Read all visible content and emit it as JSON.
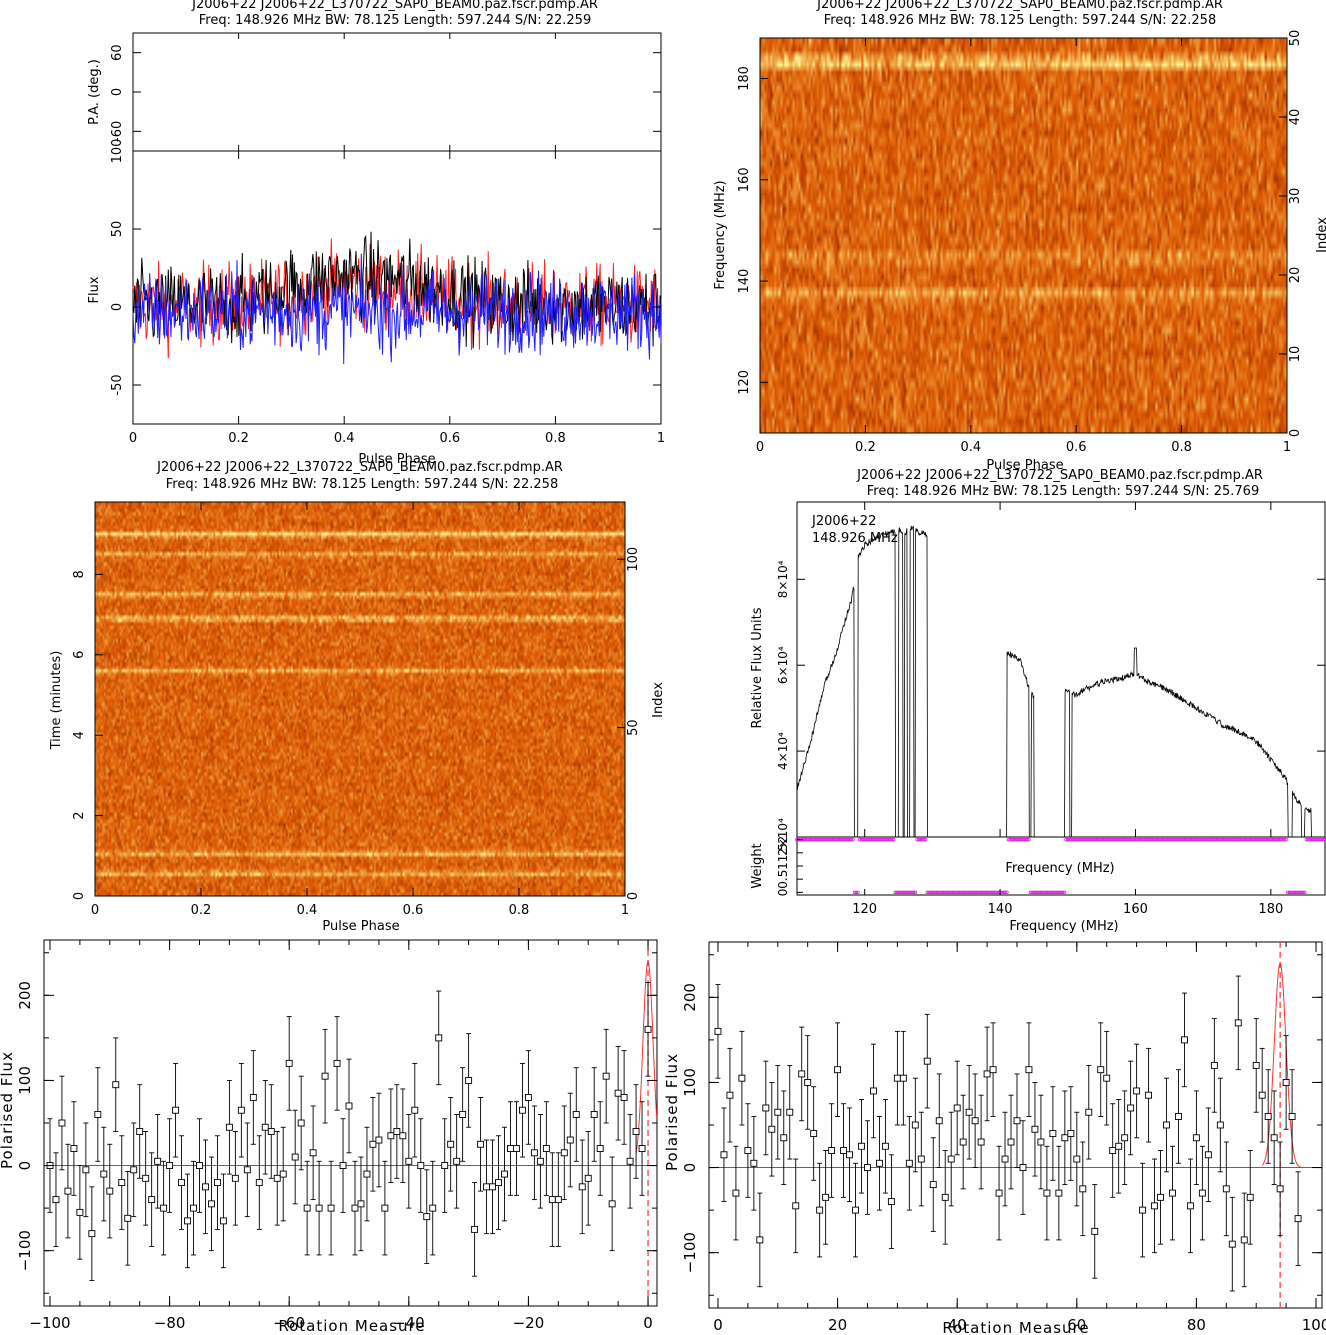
{
  "chart_data": [
    {
      "id": "profile",
      "type": "line",
      "title": "J2006+22  J2006+22_L370722_SAP0_BEAM0.paz.fscr.pdmp.AR",
      "subtitle": "Freq: 148.926 MHz BW: 78.125 Length: 597.244 S/N: 22.259",
      "xlabel": "Pulse Phase",
      "ylabel": "Flux",
      "ylabel_top": "P.A. (deg.)",
      "xlim": [
        0,
        1
      ],
      "ylim": [
        -75,
        100
      ],
      "pa_ylim": [
        -90,
        90
      ],
      "xticks": [
        "0",
        "0.2",
        "0.4",
        "0.6",
        "0.8",
        "1"
      ],
      "yticks": [
        "-50",
        "0",
        "50",
        "100"
      ],
      "pa_yticks": [
        "-60",
        "0",
        "60"
      ],
      "series": [
        {
          "color": "#000000",
          "envelope": {
            "phase": [
              0,
              0.2,
              0.3,
              0.4,
              0.5,
              0.6,
              0.7,
              1.0
            ],
            "mean": [
              0,
              2,
              12,
              20,
              18,
              8,
              2,
              0
            ]
          }
        },
        {
          "color": "#ff2020",
          "envelope": {
            "phase": [
              0,
              0.2,
              0.3,
              0.4,
              0.5,
              0.6,
              0.7,
              1.0
            ],
            "mean": [
              0,
              2,
              8,
              14,
              12,
              6,
              2,
              0
            ]
          }
        },
        {
          "color": "#2020ff",
          "envelope": {
            "phase": [
              0,
              1.0
            ],
            "mean": [
              -3,
              -3
            ]
          }
        }
      ],
      "noise_sigma": 18
    },
    {
      "id": "freq-phase",
      "type": "heatmap",
      "title": "J2006+22  J2006+22_L370722_SAP0_BEAM0.paz.fscr.pdmp.AR",
      "subtitle": "Freq: 148.926 MHz BW: 78.125 Length: 597.244 S/N: 22.258",
      "xlabel": "Pulse Phase",
      "ylabel": "Frequency (MHz)",
      "ylabel_right": "Index",
      "xlim": [
        0,
        1
      ],
      "ylim": [
        110,
        188
      ],
      "index_lim": [
        0,
        50
      ],
      "xticks": [
        "0",
        "0.2",
        "0.4",
        "0.6",
        "0.8",
        "1"
      ],
      "yticks": [
        "120",
        "140",
        "160",
        "180"
      ],
      "index_ticks": [
        "0",
        "10",
        "20",
        "30",
        "40",
        "50"
      ],
      "bright_rows": [
        {
          "value": 183.2,
          "strength": 1.0
        },
        {
          "value": 144.7,
          "strength": 0.35
        },
        {
          "value": 137.5,
          "strength": 0.5
        }
      ]
    },
    {
      "id": "time-phase",
      "type": "heatmap",
      "title": "J2006+22  J2006+22_L370722_SAP0_BEAM0.paz.fscr.pdmp.AR",
      "subtitle": "Freq: 148.926 MHz BW: 78.125 Length: 597.244 S/N: 22.258",
      "xlabel": "Pulse Phase",
      "ylabel": "Time (minutes)",
      "ylabel_right": "Index",
      "xlim": [
        0,
        1
      ],
      "ylim": [
        0,
        9.8
      ],
      "index_lim": [
        0,
        117
      ],
      "xticks": [
        "0",
        "0.2",
        "0.4",
        "0.6",
        "0.8",
        "1"
      ],
      "yticks": [
        "0",
        "2",
        "4",
        "6",
        "8"
      ],
      "index_ticks": [
        "0",
        "50",
        "100"
      ],
      "bright_rows": [
        {
          "value": 9.0,
          "strength": 1.0
        },
        {
          "value": 8.5,
          "strength": 0.6
        },
        {
          "value": 7.5,
          "strength": 0.7
        },
        {
          "value": 6.9,
          "strength": 0.85
        },
        {
          "value": 5.6,
          "strength": 0.6
        },
        {
          "value": 1.05,
          "strength": 0.75
        },
        {
          "value": 0.55,
          "strength": 0.7
        }
      ]
    },
    {
      "id": "bandpass",
      "type": "line",
      "title": "J2006+22  J2006+22_L370722_SAP0_BEAM0.paz.fscr.pdmp.AR",
      "subtitle": "Freq: 148.926 MHz BW: 78.125 Length: 597.244 S/N: 25.769",
      "annotation": [
        "J2006+22",
        "148.926 MHz"
      ],
      "xlabel": "Frequency (MHz)",
      "xlabel_inner": "Frequency (MHz)",
      "ylabel": "Relative Flux Units",
      "ylabel_bottom": "Weight",
      "xlim": [
        110,
        188
      ],
      "ylim": [
        20000,
        98000
      ],
      "xticks": [
        "120",
        "140",
        "160",
        "180"
      ],
      "yticks": [
        "2×10⁴",
        "4×10⁴",
        "6×10⁴",
        "8×10⁴"
      ],
      "weight_ticks": [
        "0",
        "0.5",
        "1",
        "1.5",
        "2"
      ],
      "freq": [
        110,
        112,
        114,
        116,
        117,
        118,
        118.6,
        119,
        120,
        121,
        122,
        123,
        124,
        125,
        126,
        127,
        128,
        129,
        130,
        141,
        142,
        143,
        144,
        145,
        150,
        151,
        152,
        155,
        158,
        160,
        162,
        165,
        168,
        170,
        173,
        176,
        178,
        180,
        182,
        184,
        186,
        188
      ],
      "flux": [
        31000,
        42000,
        55000,
        64000,
        70000,
        75000,
        80000,
        85000,
        88000,
        89000,
        90000,
        90500,
        91000,
        91500,
        91000,
        92000,
        91000,
        90500,
        89000,
        63000,
        62000,
        61000,
        56000,
        52000,
        54000,
        53000,
        54000,
        56000,
        57000,
        58000,
        56000,
        54000,
        51000,
        49000,
        46000,
        44000,
        42000,
        38000,
        34000,
        28000,
        26000,
        21000
      ],
      "gaps": [
        [
          118.4,
          119.0
        ],
        [
          124.5,
          125.0
        ],
        [
          125.6,
          125.9
        ],
        [
          126.3,
          126.7
        ],
        [
          127.2,
          127.5
        ],
        [
          129.2,
          141.0
        ],
        [
          144.3,
          144.6
        ],
        [
          145.0,
          149.6
        ],
        [
          150.3,
          150.6
        ],
        [
          182.5,
          183.2
        ],
        [
          184.5,
          185.0
        ],
        [
          186.0,
          188.0
        ]
      ],
      "spike": {
        "freq": 160,
        "flux": 64000
      },
      "zero_weight_ranges": [
        [
          118.4,
          119.0
        ],
        [
          124.5,
          127.5
        ],
        [
          129.2,
          141.0
        ],
        [
          144.3,
          149.6
        ],
        [
          182.5,
          185.0
        ]
      ]
    },
    {
      "id": "rm-negative",
      "type": "scatter",
      "xlabel": "Rotation Measure",
      "ylabel": "Polarised Flux",
      "xlim": [
        -101,
        1.5
      ],
      "ylim": [
        -165,
        265
      ],
      "xticks": [
        "−100",
        "−80",
        "−60",
        "−40",
        "−20",
        "0"
      ],
      "yticks": [
        "−100",
        "0",
        "100",
        "200"
      ],
      "best_rm": 0,
      "points": [
        [
          -100,
          0
        ],
        [
          -99,
          -40
        ],
        [
          -98,
          50
        ],
        [
          -97,
          -30
        ],
        [
          -96,
          20
        ],
        [
          -95,
          -55
        ],
        [
          -94,
          -5
        ],
        [
          -93,
          -80
        ],
        [
          -92,
          60
        ],
        [
          -91,
          -10
        ],
        [
          -90,
          -30
        ],
        [
          -89,
          95
        ],
        [
          -88,
          -20
        ],
        [
          -87,
          -62
        ],
        [
          -86,
          -5
        ],
        [
          -85,
          40
        ],
        [
          -84,
          -15
        ],
        [
          -83,
          -40
        ],
        [
          -82,
          5
        ],
        [
          -81,
          -50
        ],
        [
          -80,
          0
        ],
        [
          -79,
          65
        ],
        [
          -78,
          -20
        ],
        [
          -77,
          -65
        ],
        [
          -76,
          -50
        ],
        [
          -75,
          0
        ],
        [
          -74,
          -25
        ],
        [
          -73,
          -45
        ],
        [
          -72,
          -20
        ],
        [
          -71,
          -65
        ],
        [
          -70,
          45
        ],
        [
          -69,
          -15
        ],
        [
          -68,
          65
        ],
        [
          -67,
          -5
        ],
        [
          -66,
          80
        ],
        [
          -65,
          -20
        ],
        [
          -64,
          45
        ],
        [
          -63,
          40
        ],
        [
          -62,
          -15
        ],
        [
          -61,
          -10
        ],
        [
          -60,
          120
        ],
        [
          -59,
          10
        ],
        [
          -58,
          50
        ],
        [
          -57,
          -50
        ],
        [
          -56,
          15
        ],
        [
          -55,
          -50
        ],
        [
          -54,
          105
        ],
        [
          -53,
          -50
        ],
        [
          -52,
          120
        ],
        [
          -51,
          0
        ],
        [
          -50,
          70
        ],
        [
          -49,
          -50
        ],
        [
          -48,
          -45
        ],
        [
          -47,
          -10
        ],
        [
          -46,
          25
        ],
        [
          -45,
          30
        ],
        [
          -44,
          -50
        ],
        [
          -43,
          35
        ],
        [
          -42,
          40
        ],
        [
          -41,
          35
        ],
        [
          -40,
          5
        ],
        [
          -39,
          65
        ],
        [
          -38,
          0
        ],
        [
          -37,
          -60
        ],
        [
          -36,
          -50
        ],
        [
          -35,
          150
        ],
        [
          -34,
          0
        ],
        [
          -33,
          25
        ],
        [
          -32,
          5
        ],
        [
          -31,
          60
        ],
        [
          -30,
          100
        ],
        [
          -29,
          -75
        ],
        [
          -28,
          25
        ],
        [
          -27,
          -25
        ],
        [
          -26,
          -25
        ],
        [
          -25,
          -20
        ],
        [
          -24,
          -10
        ],
        [
          -23,
          20
        ],
        [
          -22,
          20
        ],
        [
          -21,
          65
        ],
        [
          -20,
          80
        ],
        [
          -19,
          15
        ],
        [
          -18,
          5
        ],
        [
          -17,
          20
        ],
        [
          -16,
          -40
        ],
        [
          -15,
          -40
        ],
        [
          -14,
          15
        ],
        [
          -13,
          30
        ],
        [
          -12,
          60
        ],
        [
          -11,
          -25
        ],
        [
          -10,
          -15
        ],
        [
          -9,
          60
        ],
        [
          -8,
          20
        ],
        [
          -7,
          105
        ],
        [
          -6,
          -45
        ],
        [
          -5,
          85
        ],
        [
          -4,
          80
        ],
        [
          -3,
          5
        ],
        [
          -2,
          40
        ],
        [
          -1,
          20
        ],
        [
          0,
          160
        ]
      ],
      "errorbar": 55
    },
    {
      "id": "rm-positive",
      "type": "scatter",
      "xlabel": "Rotation Measure",
      "ylabel": "Polarised Flux",
      "xlim": [
        -1.5,
        101
      ],
      "ylim": [
        -165,
        265
      ],
      "xticks": [
        "0",
        "20",
        "40",
        "60",
        "80",
        "100"
      ],
      "yticks": [
        "−100",
        "0",
        "100",
        "200"
      ],
      "best_rm": 94,
      "points": [
        [
          0,
          160
        ],
        [
          1,
          15
        ],
        [
          2,
          85
        ],
        [
          3,
          -30
        ],
        [
          4,
          105
        ],
        [
          5,
          20
        ],
        [
          6,
          5
        ],
        [
          7,
          -85
        ],
        [
          8,
          70
        ],
        [
          9,
          45
        ],
        [
          10,
          65
        ],
        [
          11,
          35
        ],
        [
          12,
          65
        ],
        [
          13,
          -45
        ],
        [
          14,
          110
        ],
        [
          15,
          100
        ],
        [
          16,
          40
        ],
        [
          17,
          -50
        ],
        [
          18,
          -35
        ],
        [
          19,
          20
        ],
        [
          20,
          115
        ],
        [
          21,
          20
        ],
        [
          22,
          15
        ],
        [
          23,
          -50
        ],
        [
          24,
          25
        ],
        [
          25,
          0
        ],
        [
          26,
          90
        ],
        [
          27,
          5
        ],
        [
          28,
          25
        ],
        [
          29,
          -40
        ],
        [
          30,
          105
        ],
        [
          31,
          105
        ],
        [
          32,
          5
        ],
        [
          33,
          50
        ],
        [
          34,
          10
        ],
        [
          35,
          125
        ],
        [
          36,
          -20
        ],
        [
          37,
          55
        ],
        [
          38,
          -35
        ],
        [
          39,
          10
        ],
        [
          40,
          70
        ],
        [
          41,
          30
        ],
        [
          42,
          65
        ],
        [
          43,
          55
        ],
        [
          44,
          30
        ],
        [
          45,
          110
        ],
        [
          46,
          115
        ],
        [
          47,
          -30
        ],
        [
          48,
          10
        ],
        [
          49,
          30
        ],
        [
          50,
          55
        ],
        [
          51,
          0
        ],
        [
          52,
          115
        ],
        [
          53,
          45
        ],
        [
          54,
          30
        ],
        [
          55,
          -30
        ],
        [
          56,
          40
        ],
        [
          57,
          -30
        ],
        [
          58,
          35
        ],
        [
          59,
          40
        ],
        [
          60,
          10
        ],
        [
          61,
          -25
        ],
        [
          62,
          65
        ],
        [
          63,
          -75
        ],
        [
          64,
          115
        ],
        [
          65,
          105
        ],
        [
          66,
          20
        ],
        [
          67,
          25
        ],
        [
          68,
          35
        ],
        [
          69,
          70
        ],
        [
          70,
          90
        ],
        [
          71,
          -50
        ],
        [
          72,
          85
        ],
        [
          73,
          -45
        ],
        [
          74,
          -35
        ],
        [
          75,
          50
        ],
        [
          76,
          -30
        ],
        [
          77,
          60
        ],
        [
          78,
          150
        ],
        [
          79,
          -45
        ],
        [
          80,
          35
        ],
        [
          81,
          -30
        ],
        [
          82,
          15
        ],
        [
          83,
          120
        ],
        [
          84,
          50
        ],
        [
          85,
          -25
        ],
        [
          86,
          -90
        ],
        [
          87,
          170
        ],
        [
          88,
          -85
        ],
        [
          89,
          -35
        ],
        [
          90,
          120
        ],
        [
          91,
          85
        ],
        [
          92,
          60
        ],
        [
          93,
          35
        ],
        [
          94,
          -25
        ],
        [
          95,
          100
        ],
        [
          96,
          60
        ],
        [
          97,
          -60
        ]
      ],
      "errorbar": 55
    }
  ]
}
